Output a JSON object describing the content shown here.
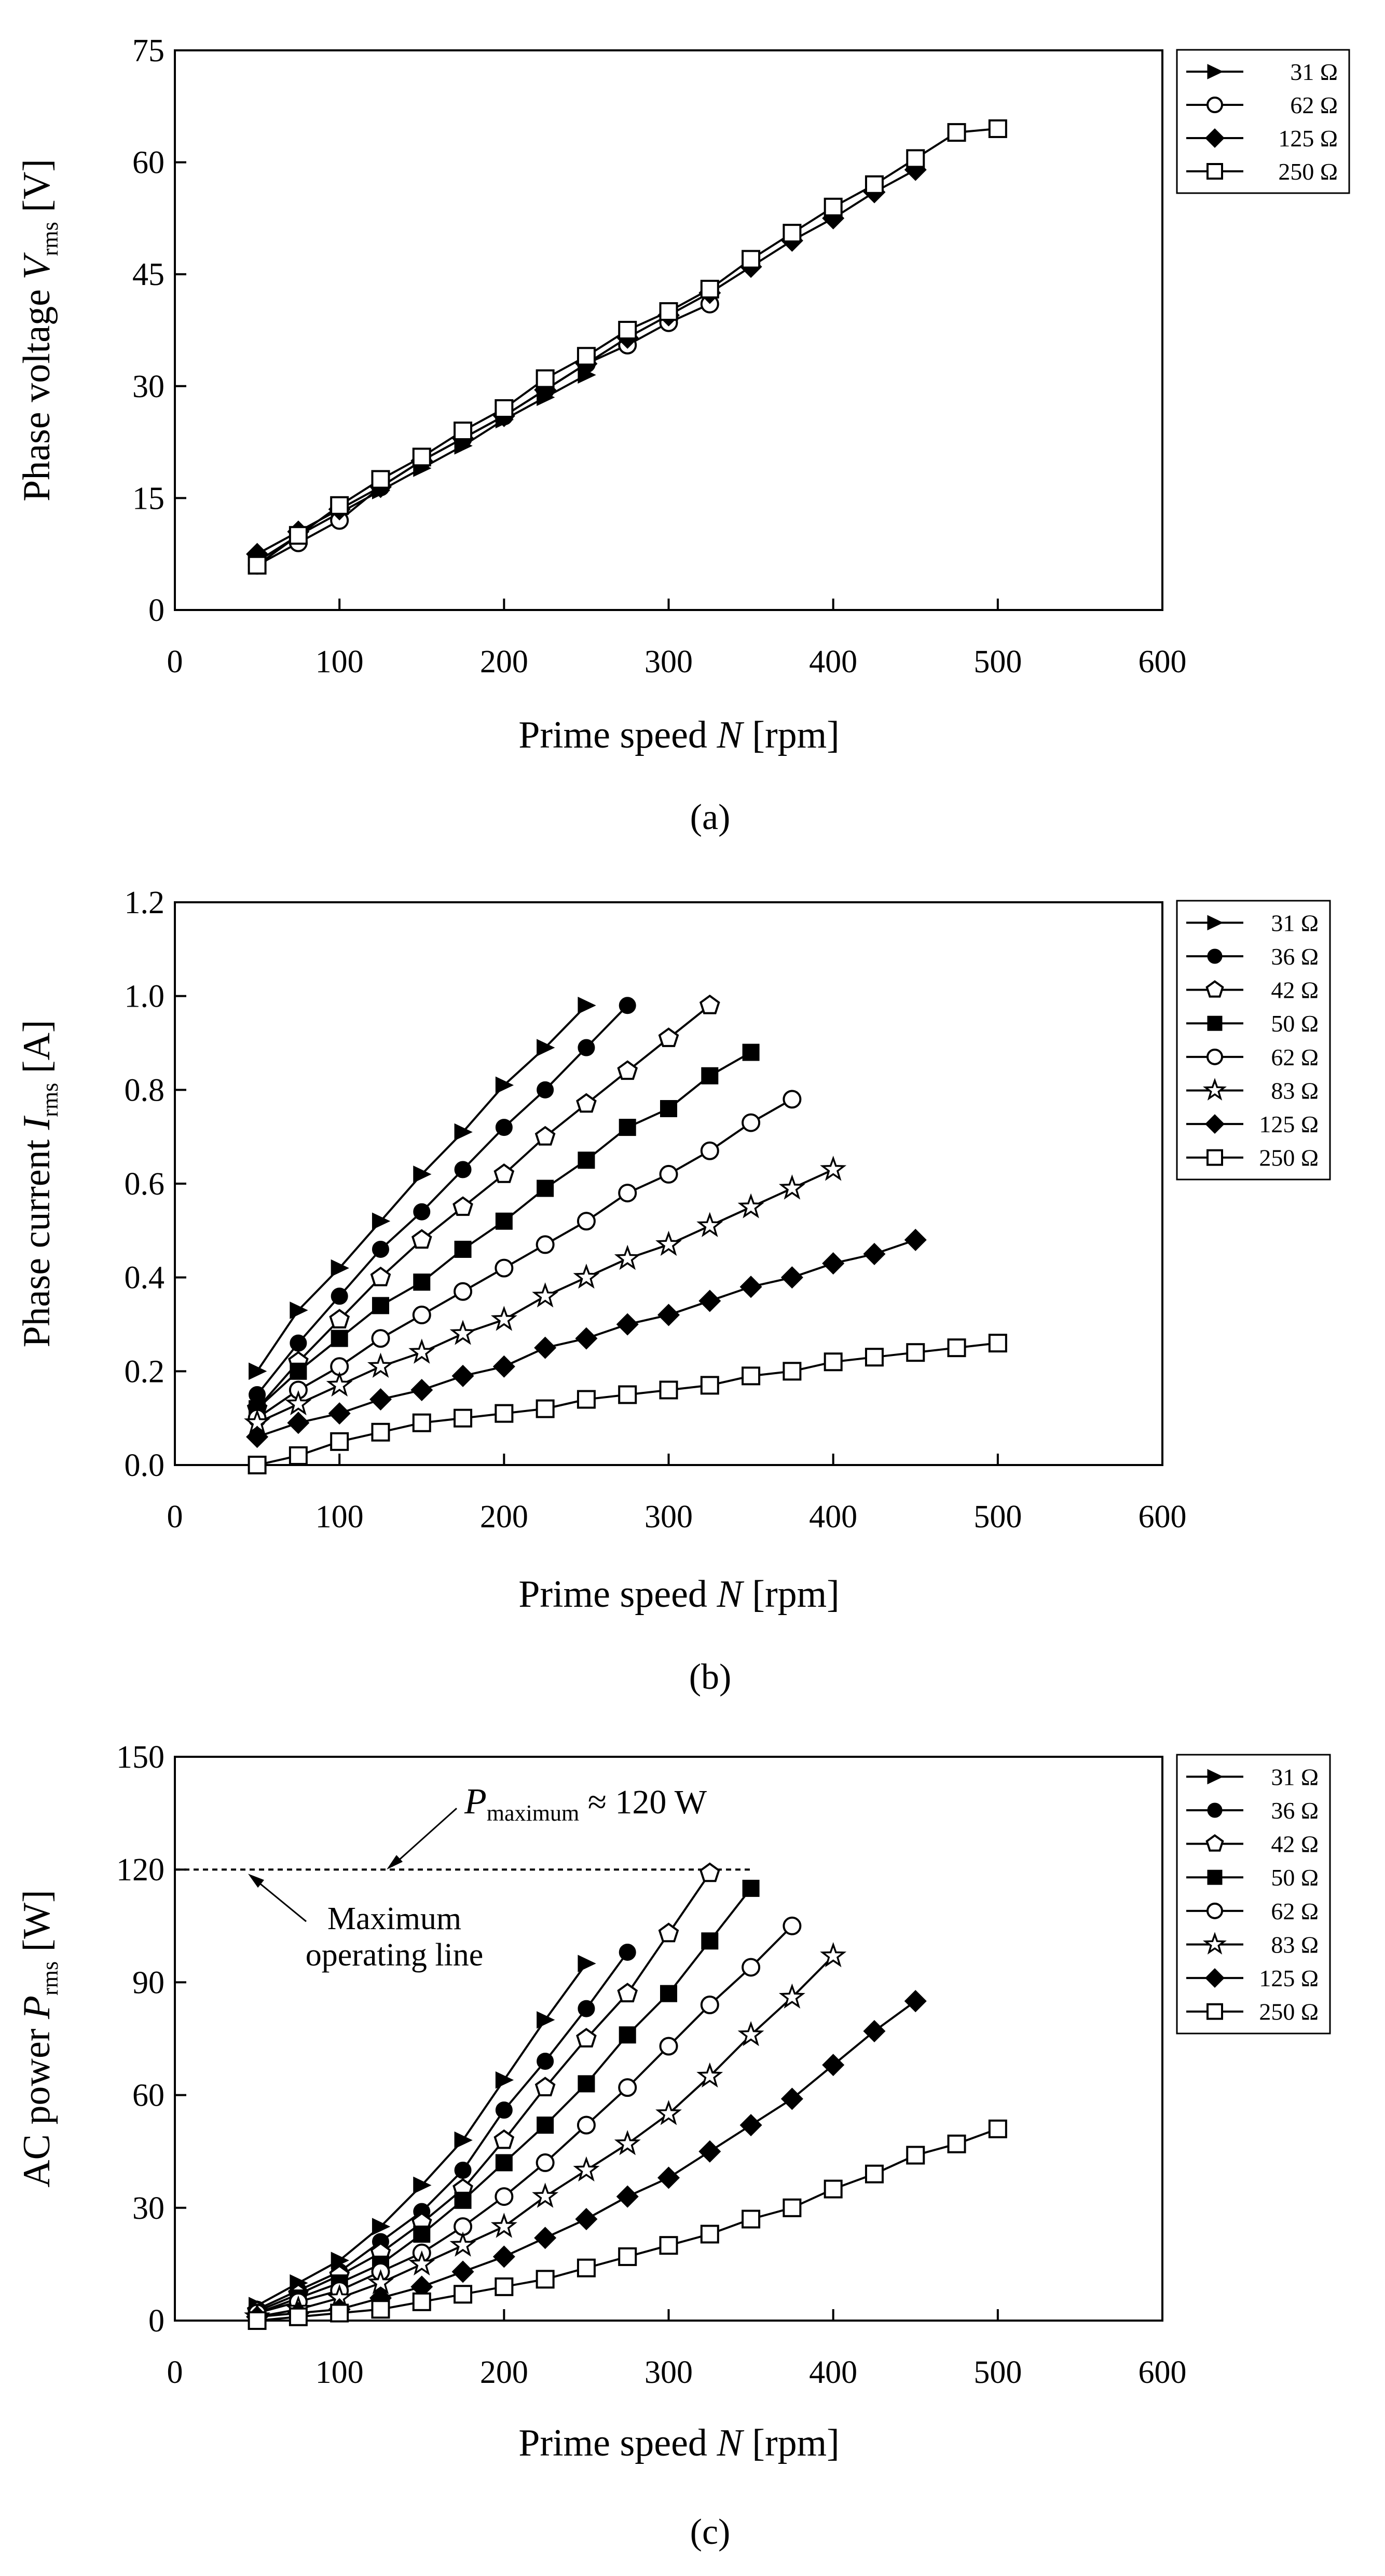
{
  "figure": {
    "panels": [
      "a",
      "b",
      "c"
    ]
  },
  "chart_data": [
    {
      "id": "a",
      "type": "line",
      "caption": "(a)",
      "title": "",
      "ylabel": {
        "main": "Phase voltage",
        "var": "V",
        "sub": "rms",
        "unit": "[V]"
      },
      "xlabel": {
        "main": "Prime speed",
        "var": "N",
        "unit": "[rpm]"
      },
      "xlim": [
        0,
        600
      ],
      "ylim": [
        0,
        75
      ],
      "xticks": [
        "0",
        "100",
        "200",
        "300",
        "400",
        "500",
        "600"
      ],
      "yticks": [
        "0",
        "15",
        "30",
        "45",
        "60",
        "75"
      ],
      "series": [
        {
          "name": "31 Ω",
          "marker": "triangle-right",
          "x": [
            50,
            75,
            100,
            125,
            150,
            175,
            200,
            225,
            250
          ],
          "y": [
            6.5,
            10,
            13,
            16,
            19,
            22,
            25.5,
            28.5,
            31.5
          ]
        },
        {
          "name": "62 Ω",
          "marker": "circle-open",
          "x": [
            50,
            75,
            100,
            125,
            150,
            175,
            200,
            225,
            250,
            275,
            300,
            325
          ],
          "y": [
            6,
            9,
            12,
            16.5,
            20,
            23,
            26,
            29.5,
            33,
            35.5,
            38.5,
            41
          ]
        },
        {
          "name": "125 Ω",
          "marker": "diamond",
          "x": [
            50,
            75,
            100,
            125,
            150,
            175,
            200,
            225,
            250,
            275,
            300,
            325,
            350,
            375,
            400,
            425,
            450
          ],
          "y": [
            7.5,
            10.5,
            13.5,
            16.5,
            20,
            23,
            26,
            29.5,
            33,
            36.5,
            39.5,
            42.5,
            46,
            49.5,
            52.5,
            56,
            59
          ]
        },
        {
          "name": "250 Ω",
          "marker": "square-open",
          "x": [
            50,
            75,
            100,
            125,
            150,
            175,
            200,
            225,
            250,
            275,
            300,
            325,
            350,
            375,
            400,
            425,
            450,
            475,
            500
          ],
          "y": [
            6,
            10,
            14,
            17.5,
            20.5,
            24,
            27,
            31,
            34,
            37.5,
            40,
            43,
            47,
            50.5,
            54,
            57,
            60.5,
            64,
            64.5
          ]
        }
      ]
    },
    {
      "id": "b",
      "type": "line",
      "caption": "(b)",
      "title": "",
      "ylabel": {
        "main": "Phase current",
        "var": "I",
        "sub": "rms",
        "unit": "[A]"
      },
      "xlabel": {
        "main": "Prime speed",
        "var": "N",
        "unit": "[rpm]"
      },
      "xlim": [
        0,
        600
      ],
      "ylim": [
        0,
        1.2
      ],
      "xticks": [
        "0",
        "100",
        "200",
        "300",
        "400",
        "500",
        "600"
      ],
      "yticks": [
        "0.0",
        "0.2",
        "0.4",
        "0.6",
        "0.8",
        "1.0",
        "1.2"
      ],
      "series": [
        {
          "name": "31 Ω",
          "marker": "triangle-right",
          "x": [
            50,
            75,
            100,
            125,
            150,
            175,
            200,
            225,
            250
          ],
          "y": [
            0.2,
            0.33,
            0.42,
            0.52,
            0.62,
            0.71,
            0.81,
            0.89,
            0.98
          ]
        },
        {
          "name": "36 Ω",
          "marker": "circle-filled",
          "x": [
            50,
            75,
            100,
            125,
            150,
            175,
            200,
            225,
            250,
            275
          ],
          "y": [
            0.15,
            0.26,
            0.36,
            0.46,
            0.54,
            0.63,
            0.72,
            0.8,
            0.89,
            0.98
          ]
        },
        {
          "name": "42 Ω",
          "marker": "pentagon-open",
          "x": [
            50,
            75,
            100,
            125,
            150,
            175,
            200,
            225,
            250,
            275,
            300,
            325
          ],
          "y": [
            0.12,
            0.22,
            0.31,
            0.4,
            0.48,
            0.55,
            0.62,
            0.7,
            0.77,
            0.84,
            0.91,
            0.98
          ]
        },
        {
          "name": "50 Ω",
          "marker": "square-filled",
          "x": [
            50,
            75,
            100,
            125,
            150,
            175,
            200,
            225,
            250,
            275,
            300,
            325,
            350
          ],
          "y": [
            0.12,
            0.2,
            0.27,
            0.34,
            0.39,
            0.46,
            0.52,
            0.59,
            0.65,
            0.72,
            0.76,
            0.83,
            0.88
          ]
        },
        {
          "name": "62 Ω",
          "marker": "circle-open",
          "x": [
            50,
            75,
            100,
            125,
            150,
            175,
            200,
            225,
            250,
            275,
            300,
            325,
            350,
            375
          ],
          "y": [
            0.1,
            0.16,
            0.21,
            0.27,
            0.32,
            0.37,
            0.42,
            0.47,
            0.52,
            0.58,
            0.62,
            0.67,
            0.73,
            0.78
          ]
        },
        {
          "name": "83 Ω",
          "marker": "star-open",
          "x": [
            50,
            75,
            100,
            125,
            150,
            175,
            200,
            225,
            250,
            275,
            300,
            325,
            350,
            375,
            400
          ],
          "y": [
            0.09,
            0.13,
            0.17,
            0.21,
            0.24,
            0.28,
            0.31,
            0.36,
            0.4,
            0.44,
            0.47,
            0.51,
            0.55,
            0.59,
            0.63
          ]
        },
        {
          "name": "125 Ω",
          "marker": "diamond",
          "x": [
            50,
            75,
            100,
            125,
            150,
            175,
            200,
            225,
            250,
            275,
            300,
            325,
            350,
            375,
            400,
            425,
            450
          ],
          "y": [
            0.06,
            0.09,
            0.11,
            0.14,
            0.16,
            0.19,
            0.21,
            0.25,
            0.27,
            0.3,
            0.32,
            0.35,
            0.38,
            0.4,
            0.43,
            0.45,
            0.48
          ]
        },
        {
          "name": "250 Ω",
          "marker": "square-open",
          "x": [
            50,
            75,
            100,
            125,
            150,
            175,
            200,
            225,
            250,
            275,
            300,
            325,
            350,
            375,
            400,
            425,
            450,
            475,
            500
          ],
          "y": [
            0.0,
            0.02,
            0.05,
            0.07,
            0.09,
            0.1,
            0.11,
            0.12,
            0.14,
            0.15,
            0.16,
            0.17,
            0.19,
            0.2,
            0.22,
            0.23,
            0.24,
            0.25,
            0.26
          ]
        }
      ]
    },
    {
      "id": "c",
      "type": "line",
      "caption": "(c)",
      "title": "",
      "ylabel": {
        "main": "AC power",
        "var": "P",
        "sub": "rms",
        "unit": "[W]"
      },
      "xlabel": {
        "main": "Prime speed",
        "var": "N",
        "unit": "[rpm]"
      },
      "xlim": [
        0,
        600
      ],
      "ylim": [
        0,
        150
      ],
      "xticks": [
        "0",
        "100",
        "200",
        "300",
        "400",
        "500",
        "600"
      ],
      "yticks": [
        "0",
        "30",
        "60",
        "90",
        "120",
        "150"
      ],
      "annotations": {
        "pmax_var": "P",
        "pmax_sub": "maximum",
        "pmax_rest": "≈ 120 W",
        "max_line_label_1": "Maximum",
        "max_line_label_2": "operating line",
        "max_line_value": 120,
        "max_line_x": [
          0,
          350
        ]
      },
      "series": [
        {
          "name": "31 Ω",
          "marker": "triangle-right",
          "x": [
            50,
            75,
            100,
            125,
            150,
            175,
            200,
            225,
            250
          ],
          "y": [
            4,
            10,
            16,
            25,
            36,
            48,
            64,
            80,
            95
          ]
        },
        {
          "name": "36 Ω",
          "marker": "circle-filled",
          "x": [
            50,
            75,
            100,
            125,
            150,
            175,
            200,
            225,
            250,
            275
          ],
          "y": [
            3,
            8,
            13,
            21,
            29,
            40,
            56,
            69,
            83,
            98
          ]
        },
        {
          "name": "42 Ω",
          "marker": "pentagon-open",
          "x": [
            50,
            75,
            100,
            125,
            150,
            175,
            200,
            225,
            250,
            275,
            300,
            325
          ],
          "y": [
            2.5,
            7,
            12,
            18,
            26,
            35,
            48,
            62,
            75,
            87,
            103,
            119
          ]
        },
        {
          "name": "50 Ω",
          "marker": "square-filled",
          "x": [
            50,
            75,
            100,
            125,
            150,
            175,
            200,
            225,
            250,
            275,
            300,
            325,
            350
          ],
          "y": [
            2,
            6,
            10,
            15,
            23,
            32,
            42,
            52,
            63,
            76,
            87,
            101,
            115
          ]
        },
        {
          "name": "62 Ω",
          "marker": "circle-open",
          "x": [
            50,
            75,
            100,
            125,
            150,
            175,
            200,
            225,
            250,
            275,
            300,
            325,
            350,
            375
          ],
          "y": [
            2,
            5,
            8,
            13,
            18,
            25,
            33,
            42,
            52,
            62,
            73,
            84,
            94,
            105
          ]
        },
        {
          "name": "83 Ω",
          "marker": "star-open",
          "x": [
            50,
            75,
            100,
            125,
            150,
            175,
            200,
            225,
            250,
            275,
            300,
            325,
            350,
            375,
            400
          ],
          "y": [
            1,
            3,
            6,
            10,
            15,
            20,
            25,
            33,
            40,
            47,
            55,
            65,
            76,
            86,
            97
          ]
        },
        {
          "name": "125 Ω",
          "marker": "diamond",
          "x": [
            50,
            75,
            100,
            125,
            150,
            175,
            200,
            225,
            250,
            275,
            300,
            325,
            350,
            375,
            400,
            425,
            450
          ],
          "y": [
            1,
            2,
            3,
            6,
            9,
            13,
            17,
            22,
            27,
            33,
            38,
            45,
            52,
            59,
            68,
            77,
            85
          ]
        },
        {
          "name": "250 Ω",
          "marker": "square-open",
          "x": [
            50,
            75,
            100,
            125,
            150,
            175,
            200,
            225,
            250,
            275,
            300,
            325,
            350,
            375,
            400,
            425,
            450,
            475,
            500
          ],
          "y": [
            0,
            1,
            2,
            3,
            5,
            7,
            9,
            11,
            14,
            17,
            20,
            23,
            27,
            30,
            35,
            39,
            44,
            47,
            51
          ]
        }
      ]
    }
  ]
}
